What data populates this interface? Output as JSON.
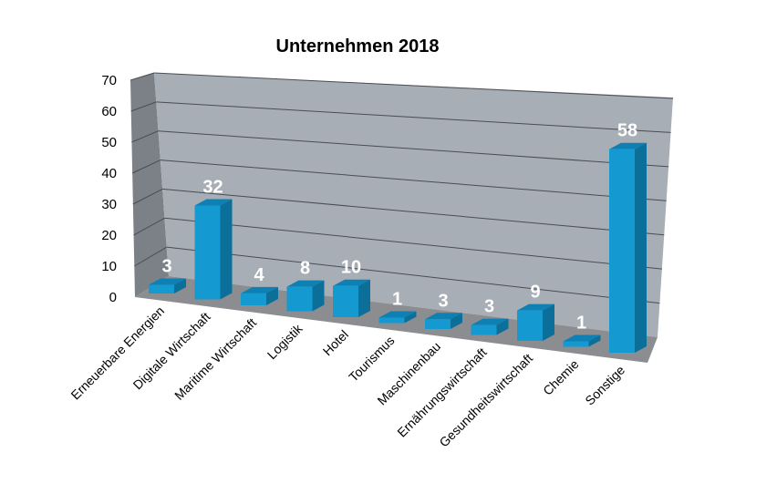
{
  "chart_data": {
    "type": "bar",
    "style": "3d-column",
    "title": "Unternehmen 2018",
    "xlabel": "",
    "ylabel": "",
    "ylim": [
      0,
      70
    ],
    "yticks": [
      0,
      10,
      20,
      30,
      40,
      50,
      60,
      70
    ],
    "grid": true,
    "legend": "none",
    "categories": [
      "Erneuerbare Energien",
      "Digitale Wirtschaft",
      "Maritime Wirtschaft",
      "Logistik",
      "Hotel",
      "Tourismus",
      "Maschinenbau",
      "Ernährungswirtschaft",
      "Gesundheitswirtschaft",
      "Chemie",
      "Sonstige"
    ],
    "values": [
      3,
      32,
      4,
      8,
      10,
      1,
      3,
      3,
      9,
      1,
      58
    ],
    "colors": {
      "bar_front": "#1499d1",
      "bar_side": "#0b6f99",
      "bar_top": "#0e80b3",
      "back_wall": "#a7aeb6",
      "side_wall": "#7c8188",
      "floor": "#8b8d90",
      "grid": "#4a4d52",
      "label": "#ffffff"
    }
  }
}
